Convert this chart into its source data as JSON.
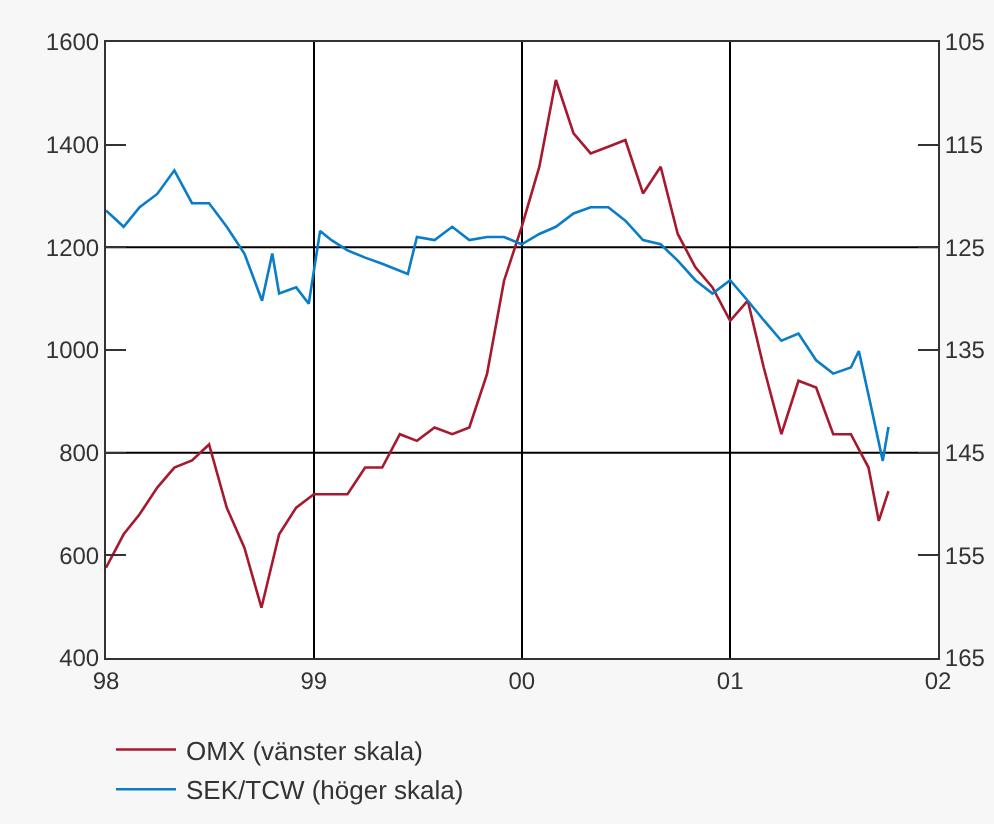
{
  "chart_data": {
    "type": "line",
    "xlim": [
      "1998-01-01",
      "2002-01-01"
    ],
    "xticks": [
      {
        "value": "1998-01-01",
        "label": "98"
      },
      {
        "value": "1999-01-01",
        "label": "99"
      },
      {
        "value": "2000-01-01",
        "label": "00"
      },
      {
        "value": "2001-01-01",
        "label": "01"
      },
      {
        "value": "2002-01-01",
        "label": "02"
      }
    ],
    "ylim": [
      400,
      1600
    ],
    "yticks": [
      400,
      600,
      800,
      1000,
      1200,
      1400,
      1600
    ],
    "y2lim": [
      165,
      105
    ],
    "y2ticks": [
      105,
      115,
      125,
      135,
      145,
      155,
      165
    ],
    "grid": "x",
    "legend": "bottom",
    "line_style": "solid",
    "ref_lines": [
      {
        "axis": "y",
        "value": 800
      },
      {
        "axis": "y",
        "value": 1200
      }
    ],
    "series": [
      {
        "name": "OMX (vänster skala)",
        "color": "#a6192e",
        "x": [
          "1998-01-01",
          "1998-02-01",
          "1998-03-01",
          "1998-04-01",
          "1998-05-01",
          "1998-06-01",
          "1998-07-01",
          "1998-08-01",
          "1998-09-01",
          "1998-10-01",
          "1998-11-01",
          "1998-12-01",
          "1999-01-01",
          "1999-02-01",
          "1999-03-01",
          "1999-04-01",
          "1999-05-01",
          "1999-06-01",
          "1999-07-01",
          "1999-08-01",
          "1999-09-01",
          "1999-10-01",
          "1999-11-01",
          "1999-12-01",
          "2000-01-01",
          "2000-02-01",
          "2000-03-01",
          "2000-04-01",
          "2000-05-01",
          "2000-06-01",
          "2000-07-01",
          "2000-08-01",
          "2000-09-01",
          "2000-10-01",
          "2000-11-01",
          "2000-12-01",
          "2001-01-01",
          "2001-02-01",
          "2001-03-01",
          "2001-04-01",
          "2001-05-01",
          "2001-06-01",
          "2001-07-01",
          "2001-08-01",
          "2001-09-01",
          "2001-09-19",
          "2001-10-06"
        ],
        "values": [
          576,
          641,
          680,
          732,
          771,
          785,
          816,
          693,
          615,
          498,
          641,
          693,
          719,
          719,
          719,
          771,
          771,
          836,
          823,
          849,
          836,
          849,
          953,
          1135,
          1240,
          1357,
          1526,
          1422,
          1383,
          1396,
          1409,
          1305,
          1357,
          1226,
          1161,
          1122,
          1057,
          1096,
          966,
          836,
          940,
          927,
          836,
          836,
          771,
          667,
          725
        ]
      },
      {
        "name": "SEK/TCW (höger skala)",
        "color": "#0a7dc8",
        "axis": "y2",
        "x": [
          "1998-01-01",
          "1998-02-01",
          "1998-03-01",
          "1998-04-01",
          "1998-05-01",
          "1998-06-01",
          "1998-07-01",
          "1998-08-01",
          "1998-09-01",
          "1998-10-02",
          "1998-10-20",
          "1998-11-01",
          "1998-12-01",
          "1998-12-23",
          "1999-01-12",
          "1999-02-01",
          "1999-03-01",
          "1999-04-01",
          "1999-05-01",
          "1999-06-15",
          "1999-07-01",
          "1999-08-01",
          "1999-09-01",
          "1999-10-01",
          "1999-11-01",
          "1999-12-01",
          "2000-01-01",
          "2000-02-01",
          "2000-03-01",
          "2000-04-01",
          "2000-05-01",
          "2000-06-01",
          "2000-07-01",
          "2000-08-01",
          "2000-09-01",
          "2000-10-01",
          "2000-11-01",
          "2000-12-01",
          "2001-01-01",
          "2001-02-01",
          "2001-03-01",
          "2001-04-01",
          "2001-05-01",
          "2001-06-01",
          "2001-07-01",
          "2001-08-01",
          "2001-08-15",
          "2001-09-03",
          "2001-09-26",
          "2001-10-06"
        ],
        "values": [
          121.4,
          123.0,
          121.1,
          119.8,
          117.5,
          120.7,
          120.7,
          123.0,
          125.6,
          130.2,
          125.6,
          129.5,
          128.9,
          130.5,
          123.4,
          124.3,
          125.3,
          126.0,
          126.6,
          127.6,
          124.0,
          124.3,
          123.0,
          124.3,
          124.0,
          124.0,
          124.7,
          123.7,
          123.0,
          121.7,
          121.1,
          121.1,
          122.4,
          124.3,
          124.7,
          126.3,
          128.2,
          129.5,
          128.2,
          130.2,
          132.1,
          134.1,
          133.4,
          136.0,
          137.3,
          136.7,
          135.1,
          139.9,
          145.8,
          142.5
        ]
      }
    ]
  }
}
